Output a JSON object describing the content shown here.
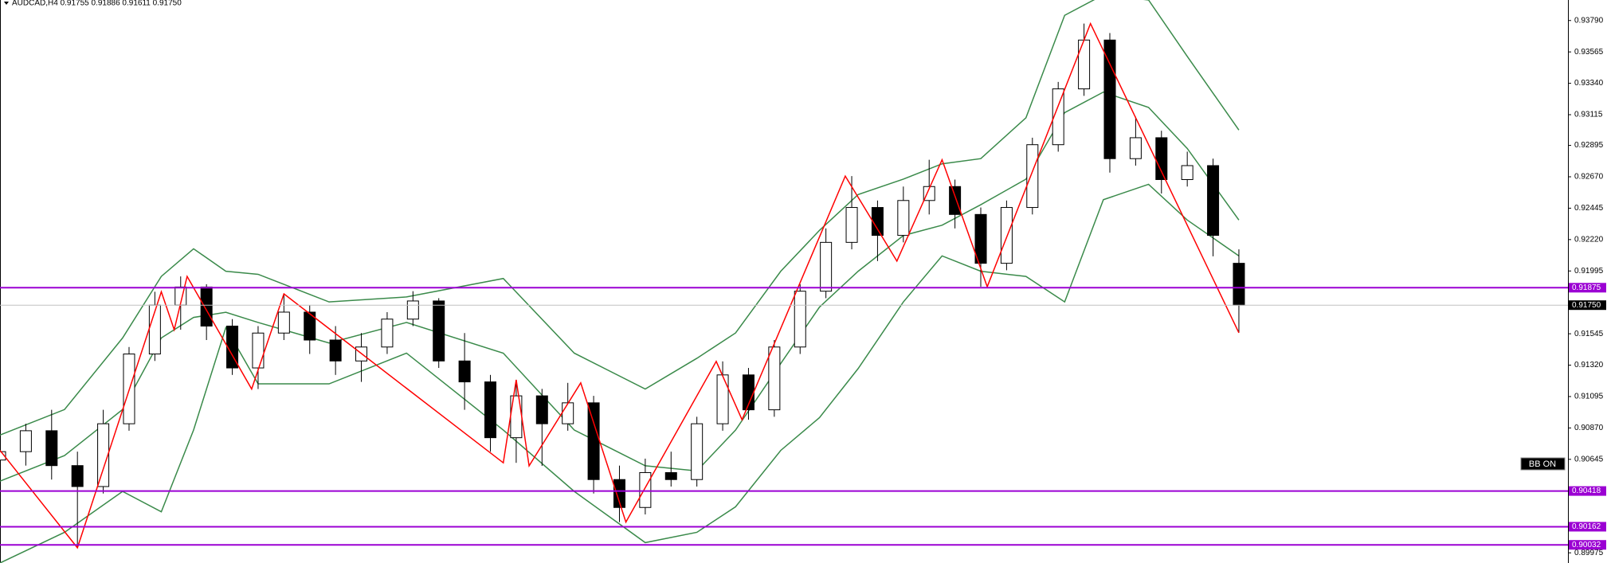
{
  "chart_data": {
    "type": "candlestick",
    "title": "AUDCAD,H4  0.91755 0.91886 0.91611 0.91750",
    "badge": "BB ON",
    "xlim": [
      0,
      243
    ],
    "ylim": [
      0.89902,
      0.93937
    ],
    "yticks": [
      {
        "value": 0.9379,
        "label": "0.93790"
      },
      {
        "value": 0.93565,
        "label": "0.93565"
      },
      {
        "value": 0.9334,
        "label": "0.93340"
      },
      {
        "value": 0.93115,
        "label": "0.93115"
      },
      {
        "value": 0.92895,
        "label": "0.92895"
      },
      {
        "value": 0.9267,
        "label": "0.92670"
      },
      {
        "value": 0.92445,
        "label": "0.92445"
      },
      {
        "value": 0.9222,
        "label": "0.92220"
      },
      {
        "value": 0.91995,
        "label": "0.91995"
      },
      {
        "value": 0.91545,
        "label": "0.91545"
      },
      {
        "value": 0.9132,
        "label": "0.91320"
      },
      {
        "value": 0.91095,
        "label": "0.91095"
      },
      {
        "value": 0.9087,
        "label": "0.90870"
      },
      {
        "value": 0.90645,
        "label": "0.90645"
      },
      {
        "value": 0.89975,
        "label": "0.89975"
      }
    ],
    "levels": [
      {
        "value": 0.91875,
        "label": "0.91875"
      },
      {
        "value": 0.90418,
        "label": "0.90418"
      },
      {
        "value": 0.90162,
        "label": "0.90162"
      },
      {
        "value": 0.90032,
        "label": "0.90032"
      }
    ],
    "level_color": "#9b00d3",
    "current": {
      "value": 0.9175,
      "label": "0.91750"
    },
    "candles": {
      "x": [
        0,
        4,
        8,
        12,
        16,
        20,
        24,
        28,
        32,
        36,
        40,
        44,
        48,
        52,
        56,
        60,
        64,
        68,
        72,
        76,
        80,
        84,
        88,
        92,
        96,
        100,
        104,
        108,
        112,
        116,
        120,
        124,
        128,
        132,
        136,
        140,
        144,
        148,
        152,
        156,
        160,
        164,
        168,
        172,
        176,
        180,
        184,
        188,
        192
      ],
      "open": [
        0.9064,
        0.907,
        0.9085,
        0.906,
        0.9045,
        0.909,
        0.914,
        0.9175,
        0.9188,
        0.916,
        0.913,
        0.9155,
        0.917,
        0.915,
        0.9135,
        0.9145,
        0.9165,
        0.9178,
        0.9135,
        0.912,
        0.908,
        0.911,
        0.909,
        0.9105,
        0.905,
        0.903,
        0.9055,
        0.905,
        0.909,
        0.9125,
        0.91,
        0.9145,
        0.9185,
        0.922,
        0.9245,
        0.9225,
        0.925,
        0.926,
        0.924,
        0.9205,
        0.9245,
        0.929,
        0.933,
        0.9365,
        0.928,
        0.9295,
        0.9265,
        0.9275,
        0.9205
      ],
      "high": [
        0.9076,
        0.909,
        0.91,
        0.907,
        0.91,
        0.9145,
        0.91846,
        0.91956,
        0.919,
        0.9165,
        0.916,
        0.91831,
        0.9175,
        0.916,
        0.9155,
        0.917,
        0.9185,
        0.918,
        0.9155,
        0.9125,
        0.91215,
        0.9115,
        0.91193,
        0.911,
        0.906,
        0.9065,
        0.907,
        0.9095,
        0.91347,
        0.913,
        0.915,
        0.919,
        0.923,
        0.92675,
        0.925,
        0.926,
        0.92792,
        0.9265,
        0.9245,
        0.925,
        0.9295,
        0.9335,
        0.93768,
        0.937,
        0.931,
        0.93,
        0.9285,
        0.928,
        0.9215
      ],
      "low": [
        0.9056,
        0.906,
        0.905,
        0.90011,
        0.904,
        0.9085,
        0.9135,
        0.91574,
        0.915,
        0.9125,
        0.91149,
        0.915,
        0.914,
        0.9125,
        0.912,
        0.914,
        0.916,
        0.913,
        0.91,
        0.907,
        0.9062,
        0.90598,
        0.9085,
        0.904,
        0.90195,
        0.9025,
        0.9045,
        0.9045,
        0.9085,
        0.90929,
        0.9095,
        0.914,
        0.918,
        0.9215,
        0.92066,
        0.922,
        0.924,
        0.923,
        0.91882,
        0.92,
        0.924,
        0.9285,
        0.9325,
        0.927,
        0.9275,
        0.9255,
        0.926,
        0.921,
        0.91552
      ],
      "close": [
        0.907,
        0.9085,
        0.906,
        0.9045,
        0.909,
        0.914,
        0.9175,
        0.9188,
        0.916,
        0.913,
        0.9155,
        0.917,
        0.915,
        0.9135,
        0.9145,
        0.9165,
        0.9178,
        0.9135,
        0.912,
        0.908,
        0.911,
        0.909,
        0.9105,
        0.905,
        0.903,
        0.9055,
        0.905,
        0.909,
        0.9125,
        0.91,
        0.9145,
        0.9185,
        0.922,
        0.9245,
        0.9225,
        0.925,
        0.926,
        0.924,
        0.9205,
        0.9245,
        0.929,
        0.933,
        0.9365,
        0.928,
        0.9295,
        0.9265,
        0.9275,
        0.9225,
        0.9175
      ]
    },
    "band_x": [
      0,
      10,
      19,
      25,
      30,
      35,
      40,
      51,
      63,
      78,
      89,
      100,
      108,
      114,
      121,
      127,
      133,
      140,
      146,
      152,
      159,
      165,
      171,
      178,
      184,
      192
    ],
    "band_color": "#3a8a4a",
    "bands": [
      {
        "values": [
          0.90819,
          0.91002,
          0.91515,
          0.91956,
          0.92154,
          0.91993,
          0.91971,
          0.91773,
          0.91809,
          0.91941,
          0.91406,
          0.91149,
          0.91369,
          0.91551,
          0.91993,
          0.92286,
          0.92543,
          0.92653,
          0.92763,
          0.928,
          0.93093,
          0.93827,
          0.93974,
          0.93937,
          0.93533,
          0.93005
        ]
      },
      {
        "values": [
          0.90489,
          0.90672,
          0.91002,
          0.91515,
          0.91662,
          0.91699,
          0.91626,
          0.91479,
          0.91626,
          0.91406,
          0.90855,
          0.90599,
          0.90562,
          0.90855,
          0.91332,
          0.91736,
          0.91993,
          0.92249,
          0.92323,
          0.9247,
          0.92653,
          0.9313,
          0.93277,
          0.93167,
          0.92873,
          0.9236
        ]
      },
      {
        "values": [
          0.89902,
          0.90122,
          0.90415,
          0.90269,
          0.90855,
          0.91589,
          0.91186,
          0.91186,
          0.91406,
          0.90855,
          0.90415,
          0.90048,
          0.90122,
          0.90305,
          0.90709,
          0.90944,
          0.91296,
          0.91773,
          0.92103,
          0.91993,
          0.91956,
          0.91773,
          0.92506,
          0.92616,
          0.9236,
          0.92103
        ]
      }
    ],
    "zigzag": {
      "color": "#ff0000",
      "x": [
        0,
        12,
        25,
        27,
        29,
        39,
        44,
        78,
        80,
        82,
        90,
        97,
        111,
        115,
        131,
        139,
        146,
        153,
        169,
        192
      ],
      "values": [
        0.90709,
        0.90011,
        0.91846,
        0.91574,
        0.91956,
        0.91149,
        0.91831,
        0.9062,
        0.91215,
        0.90598,
        0.91193,
        0.90195,
        0.91347,
        0.90929,
        0.92675,
        0.92066,
        0.92792,
        0.91882,
        0.93768,
        0.91552
      ]
    }
  }
}
